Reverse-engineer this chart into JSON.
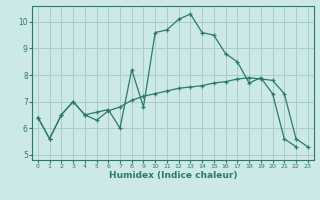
{
  "title": "",
  "xlabel": "Humidex (Indice chaleur)",
  "bg_color": "#cce8e8",
  "line_color": "#2a7a6a",
  "grid_color": "#aacccc",
  "xlim": [
    -0.5,
    23.5
  ],
  "ylim": [
    4.8,
    10.6
  ],
  "xticks": [
    0,
    1,
    2,
    3,
    4,
    5,
    6,
    7,
    8,
    9,
    10,
    11,
    12,
    13,
    14,
    15,
    16,
    17,
    18,
    19,
    20,
    21,
    22,
    23
  ],
  "yticks": [
    5,
    6,
    7,
    8,
    9,
    10
  ],
  "line1_x": [
    0,
    1,
    2,
    3,
    4,
    5,
    6,
    7,
    8,
    9,
    10,
    11,
    12,
    13,
    14,
    15,
    16,
    17,
    18,
    19,
    20,
    21,
    22
  ],
  "line1_y": [
    6.4,
    5.6,
    6.5,
    7.0,
    6.5,
    6.6,
    6.7,
    6.0,
    8.2,
    6.8,
    9.6,
    9.7,
    10.1,
    10.3,
    9.6,
    9.5,
    8.8,
    8.5,
    7.7,
    7.9,
    7.3,
    5.6,
    5.3
  ],
  "line2_x": [
    0,
    1,
    2,
    3,
    4,
    5,
    6,
    7,
    8,
    9,
    10,
    11,
    12,
    13,
    14,
    15,
    16,
    17,
    18,
    19,
    20,
    21,
    22,
    23
  ],
  "line2_y": [
    6.4,
    5.6,
    6.5,
    7.0,
    6.5,
    6.3,
    6.65,
    6.8,
    7.05,
    7.2,
    7.3,
    7.4,
    7.5,
    7.55,
    7.6,
    7.7,
    7.75,
    7.85,
    7.9,
    7.85,
    7.8,
    7.3,
    5.6,
    5.3
  ]
}
